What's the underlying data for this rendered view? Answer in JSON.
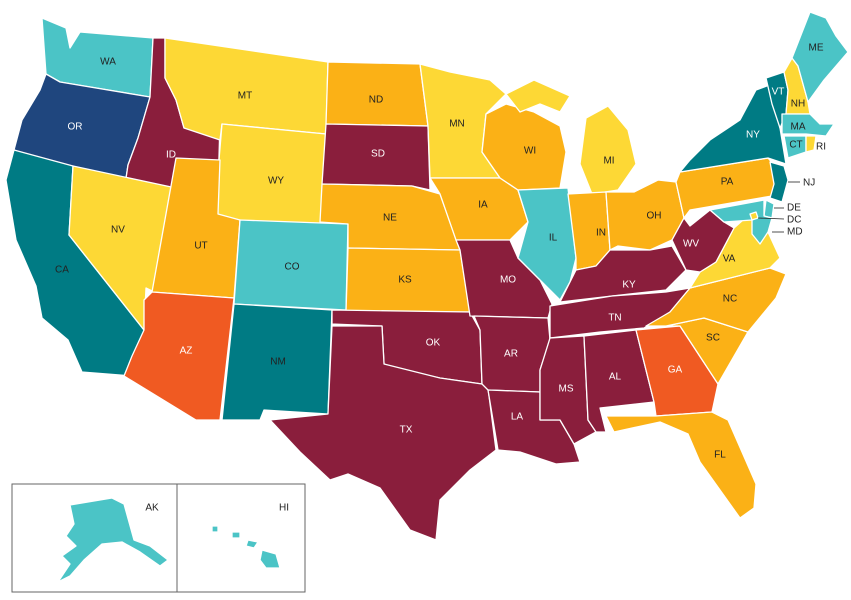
{
  "colors": {
    "maroon": "#8a1e3c",
    "navy": "#1f467e",
    "teal": "#007b84",
    "turquoise": "#4bc4c6",
    "yellow": "#fdd835",
    "orange": "#fbb116",
    "red_orange": "#f05a22"
  },
  "states": [
    {
      "code": "WA",
      "label": "WA",
      "color": "#4bc4c6"
    },
    {
      "code": "OR",
      "label": "OR",
      "color": "#1f467e"
    },
    {
      "code": "CA",
      "label": "CA",
      "color": "#007b84"
    },
    {
      "code": "ID",
      "label": "ID",
      "color": "#8a1e3c"
    },
    {
      "code": "NV",
      "label": "NV",
      "color": "#fdd835"
    },
    {
      "code": "MT",
      "label": "MT",
      "color": "#fdd835"
    },
    {
      "code": "WY",
      "label": "WY",
      "color": "#fdd835"
    },
    {
      "code": "UT",
      "label": "UT",
      "color": "#fbb116"
    },
    {
      "code": "AZ",
      "label": "AZ",
      "color": "#f05a22"
    },
    {
      "code": "CO",
      "label": "CO",
      "color": "#4bc4c6"
    },
    {
      "code": "NM",
      "label": "NM",
      "color": "#007b84"
    },
    {
      "code": "ND",
      "label": "ND",
      "color": "#fbb116"
    },
    {
      "code": "SD",
      "label": "SD",
      "color": "#8a1e3c"
    },
    {
      "code": "NE",
      "label": "NE",
      "color": "#fbb116"
    },
    {
      "code": "KS",
      "label": "KS",
      "color": "#fbb116"
    },
    {
      "code": "OK",
      "label": "OK",
      "color": "#8a1e3c"
    },
    {
      "code": "TX",
      "label": "TX",
      "color": "#8a1e3c"
    },
    {
      "code": "MN",
      "label": "MN",
      "color": "#fdd835"
    },
    {
      "code": "IA",
      "label": "IA",
      "color": "#fbb116"
    },
    {
      "code": "MO",
      "label": "MO",
      "color": "#8a1e3c"
    },
    {
      "code": "AR",
      "label": "AR",
      "color": "#8a1e3c"
    },
    {
      "code": "LA",
      "label": "LA",
      "color": "#8a1e3c"
    },
    {
      "code": "WI",
      "label": "WI",
      "color": "#fbb116"
    },
    {
      "code": "IL",
      "label": "IL",
      "color": "#4bc4c6"
    },
    {
      "code": "MI",
      "label": "MI",
      "color": "#fdd835"
    },
    {
      "code": "IN",
      "label": "IN",
      "color": "#fbb116"
    },
    {
      "code": "OH",
      "label": "OH",
      "color": "#fbb116"
    },
    {
      "code": "KY",
      "label": "KY",
      "color": "#8a1e3c"
    },
    {
      "code": "TN",
      "label": "TN",
      "color": "#8a1e3c"
    },
    {
      "code": "MS",
      "label": "MS",
      "color": "#8a1e3c"
    },
    {
      "code": "AL",
      "label": "AL",
      "color": "#8a1e3c"
    },
    {
      "code": "GA",
      "label": "GA",
      "color": "#f05a22"
    },
    {
      "code": "FL",
      "label": "FL",
      "color": "#fbb116"
    },
    {
      "code": "SC",
      "label": "SC",
      "color": "#fbb116"
    },
    {
      "code": "NC",
      "label": "NC",
      "color": "#fbb116"
    },
    {
      "code": "VA",
      "label": "VA",
      "color": "#fdd835"
    },
    {
      "code": "WV",
      "label": "WV",
      "color": "#8a1e3c"
    },
    {
      "code": "PA",
      "label": "PA",
      "color": "#fbb116"
    },
    {
      "code": "NY",
      "label": "NY",
      "color": "#007b84"
    },
    {
      "code": "VT",
      "label": "VT",
      "color": "#007b84"
    },
    {
      "code": "NH",
      "label": "NH",
      "color": "#fdd835"
    },
    {
      "code": "ME",
      "label": "ME",
      "color": "#4bc4c6"
    },
    {
      "code": "MA",
      "label": "MA",
      "color": "#4bc4c6"
    },
    {
      "code": "CT",
      "label": "CT",
      "color": "#4bc4c6"
    },
    {
      "code": "RI",
      "label": "RI",
      "color": "#fdd835"
    },
    {
      "code": "NJ",
      "label": "NJ",
      "color": "#007b84"
    },
    {
      "code": "DE",
      "label": "DE",
      "color": "#4bc4c6"
    },
    {
      "code": "MD",
      "label": "MD",
      "color": "#4bc4c6"
    },
    {
      "code": "DC",
      "label": "DC",
      "color": "#fdd835"
    },
    {
      "code": "AK",
      "label": "AK",
      "color": "#4bc4c6"
    },
    {
      "code": "HI",
      "label": "HI",
      "color": "#4bc4c6"
    }
  ]
}
